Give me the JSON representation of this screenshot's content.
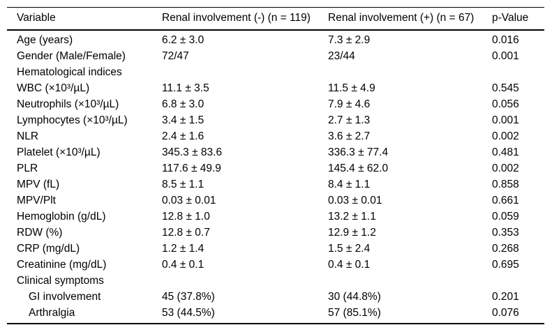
{
  "table": {
    "columns": [
      "Variable",
      "Renal involvement (-) (n = 119)",
      "Renal involvement (+) (n = 67)",
      "p-Value"
    ],
    "rows": [
      {
        "type": "data",
        "variable": "Age (years)",
        "neg": "6.2 ± 3.0",
        "pos": "7.3 ± 2.9",
        "p": "0.016"
      },
      {
        "type": "data",
        "variable": "Gender (Male/Female)",
        "neg": "72/47",
        "pos": "23/44",
        "p": "0.001"
      },
      {
        "type": "section",
        "variable": "Hematological indices",
        "neg": "",
        "pos": "",
        "p": ""
      },
      {
        "type": "data",
        "variable": "WBC (×10³/µL)",
        "neg": "11.1 ± 3.5",
        "pos": "11.5 ± 4.9",
        "p": "0.545"
      },
      {
        "type": "data",
        "variable": "Neutrophils (×10³/µL)",
        "neg": "6.8 ± 3.0",
        "pos": "7.9 ± 4.6",
        "p": "0.056"
      },
      {
        "type": "data",
        "variable": "Lymphocytes (×10³/µL)",
        "neg": "3.4 ± 1.5",
        "pos": "2.7 ± 1.3",
        "p": "0.001"
      },
      {
        "type": "data",
        "variable": "NLR",
        "neg": "2.4 ± 1.6",
        "pos": "3.6 ± 2.7",
        "p": "0.002"
      },
      {
        "type": "data",
        "variable": "Platelet (×10³/µL)",
        "neg": "345.3 ± 83.6",
        "pos": "336.3 ± 77.4",
        "p": "0.481"
      },
      {
        "type": "data",
        "variable": "PLR",
        "neg": "117.6 ± 49.9",
        "pos": "145.4 ± 62.0",
        "p": "0.002"
      },
      {
        "type": "data",
        "variable": "MPV (fL)",
        "neg": "8.5 ± 1.1",
        "pos": "8.4 ± 1.1",
        "p": "0.858"
      },
      {
        "type": "data",
        "variable": "MPV/Plt",
        "neg": "0.03 ± 0.01",
        "pos": "0.03 ± 0.01",
        "p": "0.661"
      },
      {
        "type": "data",
        "variable": "Hemoglobin (g/dL)",
        "neg": "12.8 ± 1.0",
        "pos": "13.2 ± 1.1",
        "p": "0.059"
      },
      {
        "type": "data",
        "variable": "RDW (%)",
        "neg": "12.8 ± 0.7",
        "pos": "12.9 ± 1.2",
        "p": "0.353"
      },
      {
        "type": "data",
        "variable": "CRP (mg/dL)",
        "neg": "1.2 ± 1.4",
        "pos": "1.5 ± 2.4",
        "p": "0.268"
      },
      {
        "type": "data",
        "variable": "Creatinine (mg/dL)",
        "neg": "0.4 ± 0.1",
        "pos": "0.4 ± 0.1",
        "p": "0.695"
      },
      {
        "type": "section",
        "variable": "Clinical symptoms",
        "neg": "",
        "pos": "",
        "p": ""
      },
      {
        "type": "indent",
        "variable": "GI involvement",
        "neg": "45 (37.8%)",
        "pos": "30 (44.8%)",
        "p": "0.201"
      },
      {
        "type": "indent",
        "variable": "Arthralgia",
        "neg": "53 (44.5%)",
        "pos": "57 (85.1%)",
        "p": "0.076"
      }
    ]
  },
  "colors": {
    "text": "#000000",
    "background": "#ffffff",
    "border": "#000000"
  }
}
